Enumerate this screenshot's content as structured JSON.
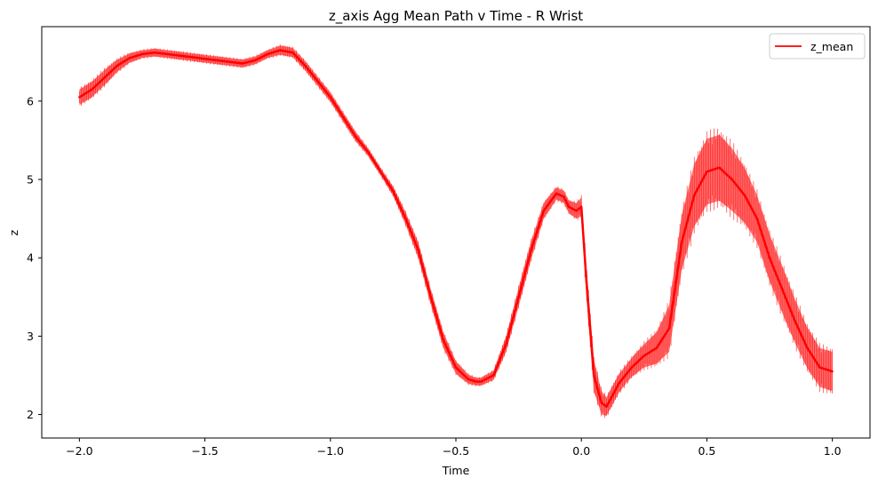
{
  "chart_data": {
    "type": "line",
    "title": "z_axis Agg Mean Path v Time - R Wrist",
    "xlabel": "Time",
    "ylabel": "z",
    "xlim": [
      -2.15,
      1.15
    ],
    "ylim": [
      1.7,
      6.95
    ],
    "xticks": [
      -2.0,
      -1.5,
      -1.0,
      -0.5,
      0.0,
      0.5,
      1.0
    ],
    "xtick_labels": [
      "−2.0",
      "−1.5",
      "−1.0",
      "−0.5",
      "0.0",
      "0.5",
      "1.0"
    ],
    "yticks": [
      2,
      3,
      4,
      5,
      6
    ],
    "ytick_labels": [
      "2",
      "3",
      "4",
      "5",
      "6"
    ],
    "grid": false,
    "legend": {
      "placement": "top-right",
      "entries": [
        "z_mean"
      ]
    },
    "series": [
      {
        "name": "z_mean",
        "color": "#ff0000",
        "x": [
          -2.0,
          -1.95,
          -1.9,
          -1.85,
          -1.8,
          -1.75,
          -1.7,
          -1.65,
          -1.6,
          -1.55,
          -1.5,
          -1.45,
          -1.4,
          -1.35,
          -1.3,
          -1.25,
          -1.2,
          -1.15,
          -1.1,
          -1.05,
          -1.0,
          -0.95,
          -0.9,
          -0.85,
          -0.8,
          -0.75,
          -0.7,
          -0.65,
          -0.6,
          -0.55,
          -0.5,
          -0.45,
          -0.42,
          -0.4,
          -0.35,
          -0.3,
          -0.25,
          -0.2,
          -0.15,
          -0.1,
          -0.07,
          -0.05,
          -0.02,
          0.0,
          0.02,
          0.05,
          0.08,
          0.1,
          0.15,
          0.2,
          0.25,
          0.3,
          0.35,
          0.4,
          0.45,
          0.5,
          0.55,
          0.6,
          0.65,
          0.7,
          0.75,
          0.8,
          0.85,
          0.9,
          0.95,
          1.0
        ],
        "values": [
          6.05,
          6.15,
          6.3,
          6.45,
          6.55,
          6.6,
          6.62,
          6.6,
          6.58,
          6.56,
          6.54,
          6.52,
          6.5,
          6.48,
          6.52,
          6.6,
          6.65,
          6.62,
          6.45,
          6.25,
          6.05,
          5.8,
          5.55,
          5.35,
          5.1,
          4.85,
          4.5,
          4.1,
          3.5,
          2.95,
          2.6,
          2.45,
          2.42,
          2.42,
          2.5,
          2.9,
          3.5,
          4.1,
          4.6,
          4.82,
          4.78,
          4.65,
          4.6,
          4.65,
          3.7,
          2.5,
          2.15,
          2.1,
          2.4,
          2.6,
          2.75,
          2.85,
          3.1,
          4.2,
          4.8,
          5.1,
          5.15,
          5.0,
          4.8,
          4.5,
          4.0,
          3.6,
          3.2,
          2.85,
          2.6,
          2.55
        ],
        "band_halfwidth": [
          0.1,
          0.1,
          0.1,
          0.08,
          0.06,
          0.05,
          0.05,
          0.05,
          0.05,
          0.05,
          0.05,
          0.05,
          0.05,
          0.05,
          0.05,
          0.05,
          0.06,
          0.06,
          0.06,
          0.06,
          0.06,
          0.06,
          0.06,
          0.05,
          0.05,
          0.06,
          0.08,
          0.1,
          0.1,
          0.1,
          0.08,
          0.06,
          0.05,
          0.05,
          0.06,
          0.1,
          0.12,
          0.12,
          0.1,
          0.08,
          0.08,
          0.08,
          0.1,
          0.12,
          0.2,
          0.2,
          0.15,
          0.12,
          0.12,
          0.12,
          0.15,
          0.2,
          0.3,
          0.35,
          0.4,
          0.42,
          0.42,
          0.4,
          0.35,
          0.3,
          0.3,
          0.3,
          0.28,
          0.26,
          0.25,
          0.25
        ]
      }
    ]
  }
}
